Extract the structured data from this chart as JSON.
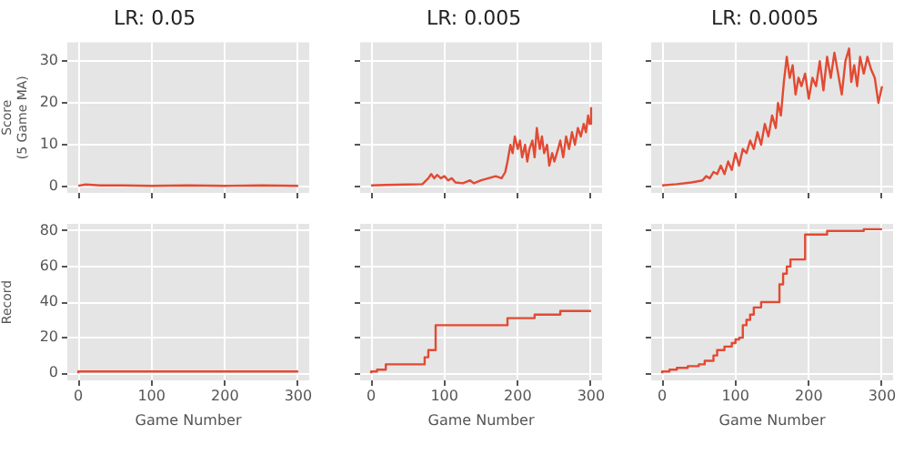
{
  "chart_data": [
    {
      "type": "line",
      "title": "LR: 0.05",
      "ylabel": "Score\n(5 Game MA)",
      "xlim": [
        -15,
        315
      ],
      "xticks": [
        0,
        100,
        200,
        300
      ],
      "ylim": [
        -1.5,
        34.5
      ],
      "yticks": [
        0,
        10,
        20,
        30
      ],
      "grid": true,
      "tick_labels": "y",
      "color": "#e24a33",
      "x": [
        0,
        10,
        30,
        60,
        100,
        150,
        200,
        250,
        300
      ],
      "values": [
        0.2,
        0.5,
        0.3,
        0.3,
        0.2,
        0.3,
        0.2,
        0.3,
        0.2
      ]
    },
    {
      "type": "line",
      "title": "LR: 0.005",
      "xlim": [
        -15,
        315
      ],
      "xticks": [
        0,
        100,
        200,
        300
      ],
      "ylim": [
        -1.5,
        34.5
      ],
      "yticks": [
        0,
        10,
        20,
        30
      ],
      "grid": true,
      "tick_labels": false,
      "color": "#e24a33",
      "x": [
        0,
        20,
        50,
        70,
        78,
        82,
        86,
        90,
        95,
        100,
        105,
        110,
        115,
        125,
        135,
        140,
        150,
        160,
        170,
        178,
        183,
        186,
        190,
        193,
        196,
        200,
        203,
        206,
        210,
        213,
        216,
        220,
        223,
        226,
        230,
        233,
        236,
        240,
        243,
        247,
        250,
        255,
        258,
        262,
        266,
        270,
        274,
        278,
        282,
        286,
        290,
        293,
        296,
        298,
        300
      ],
      "values": [
        0.3,
        0.4,
        0.5,
        0.6,
        2,
        3,
        2,
        2.8,
        2,
        2.5,
        1.5,
        2,
        1,
        0.8,
        1.5,
        0.8,
        1.5,
        2,
        2.5,
        2,
        3.5,
        6,
        10,
        8,
        12,
        9,
        11,
        7,
        10,
        6,
        9,
        11,
        7,
        14,
        9,
        12,
        8,
        10,
        5,
        8,
        6,
        9,
        11,
        7,
        12,
        9,
        13,
        10,
        14,
        12,
        15,
        13,
        17,
        15,
        19
      ]
    },
    {
      "type": "line",
      "title": "LR: 0.0005",
      "xlim": [
        -15,
        315
      ],
      "xticks": [
        0,
        100,
        200,
        300
      ],
      "ylim": [
        -1.5,
        34.5
      ],
      "yticks": [
        0,
        10,
        20,
        30
      ],
      "grid": true,
      "tick_labels": false,
      "color": "#e24a33",
      "x": [
        0,
        20,
        40,
        55,
        60,
        65,
        70,
        75,
        80,
        85,
        90,
        95,
        100,
        105,
        110,
        115,
        120,
        125,
        130,
        135,
        140,
        145,
        150,
        155,
        158,
        162,
        166,
        170,
        174,
        178,
        182,
        186,
        190,
        195,
        200,
        205,
        210,
        215,
        220,
        225,
        230,
        235,
        240,
        245,
        250,
        255,
        258,
        262,
        266,
        270,
        275,
        280,
        285,
        290,
        295,
        300
      ],
      "values": [
        0.3,
        0.6,
        1,
        1.5,
        2.5,
        2,
        3.5,
        3,
        5,
        3,
        6,
        4,
        8,
        5,
        9,
        8,
        11,
        9,
        13,
        10,
        15,
        12,
        17,
        14,
        20,
        17,
        25,
        31,
        26,
        29,
        22,
        26,
        24,
        27,
        21,
        26,
        24,
        30,
        23,
        31,
        26,
        32,
        27,
        22,
        30,
        33,
        25,
        29,
        24,
        31,
        27,
        31,
        28,
        26,
        20,
        24
      ]
    },
    {
      "type": "step",
      "ylabel": "Record",
      "xlabel": "Game Number",
      "xlim": [
        -15,
        315
      ],
      "xticks": [
        0,
        100,
        200,
        300
      ],
      "ylim": [
        -4,
        84
      ],
      "yticks": [
        0,
        20,
        40,
        60,
        80
      ],
      "grid": true,
      "color": "#e24a33",
      "x": [
        0,
        5,
        300
      ],
      "values": [
        0,
        1,
        1
      ]
    },
    {
      "type": "step",
      "xlabel": "Game Number",
      "xlim": [
        -15,
        315
      ],
      "xticks": [
        0,
        100,
        200,
        300
      ],
      "ylim": [
        -4,
        84
      ],
      "yticks": [
        0,
        20,
        40,
        60,
        80
      ],
      "grid": true,
      "tick_labels": "x",
      "color": "#e24a33",
      "x": [
        0,
        8,
        20,
        73,
        78,
        83,
        88,
        186,
        223,
        258,
        296,
        300
      ],
      "values": [
        0,
        1,
        2,
        5,
        9,
        13,
        13,
        27,
        31,
        33,
        35,
        35
      ]
    },
    {
      "type": "step",
      "xlabel": "Game Number",
      "xlim": [
        -15,
        315
      ],
      "xticks": [
        0,
        100,
        200,
        300
      ],
      "ylim": [
        -4,
        84
      ],
      "yticks": [
        0,
        20,
        40,
        60,
        80
      ],
      "grid": true,
      "tick_labels": "x",
      "color": "#e24a33",
      "x": [
        0,
        10,
        20,
        35,
        50,
        58,
        70,
        75,
        85,
        95,
        100,
        105,
        110,
        115,
        120,
        125,
        135,
        160,
        165,
        170,
        175,
        195,
        225,
        275,
        280,
        300
      ],
      "values": [
        0,
        1,
        2,
        3,
        4,
        5,
        7,
        10,
        13,
        15,
        17,
        19,
        20,
        27,
        30,
        33,
        37,
        40,
        50,
        56,
        60,
        64,
        78,
        80,
        81,
        81
      ]
    }
  ]
}
